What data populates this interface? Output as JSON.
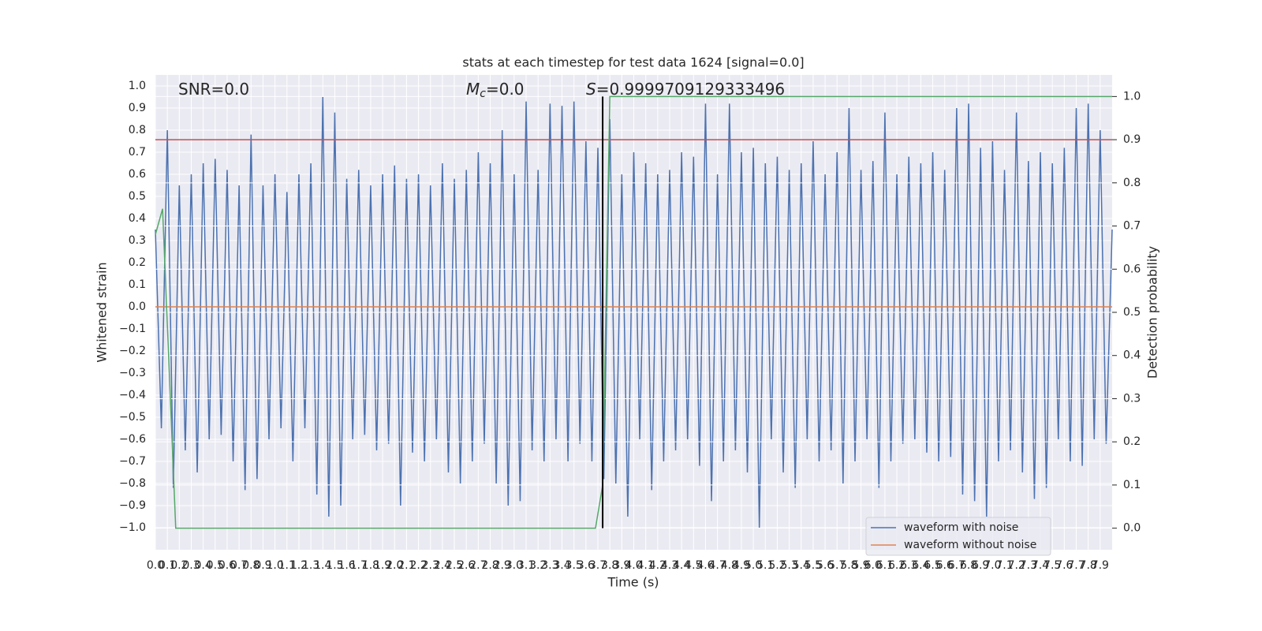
{
  "chart_data": {
    "type": "line",
    "title": "stats at each timestep for test data 1624 [signal=0.0]",
    "x_label": "Time (s)",
    "y_label": "Whitened strain",
    "y2_label": "Detection probability",
    "annotations": [
      {
        "text": "SNR=0.0"
      },
      {
        "symbol": "M",
        "subscript": "c",
        "text": "=0.0"
      },
      {
        "symbol": "S",
        "text": "=0.9999709129333496"
      }
    ],
    "xlim": [
      0,
      8
    ],
    "ylim": [
      -1.1,
      1.05
    ],
    "y2lim": [
      -0.05,
      1.05
    ],
    "grid": true,
    "legend": "lower right",
    "xticks": [
      {
        "value": 0,
        "label": "0.0"
      },
      0.1,
      0.2,
      0.3,
      0.4,
      0.5,
      0.6,
      0.7,
      0.8,
      0.9,
      {
        "value": 1,
        "label": "1.0"
      },
      1.1,
      1.2,
      1.3,
      1.4,
      1.5,
      1.6,
      1.7,
      1.8,
      1.9,
      {
        "value": 2,
        "label": "2.0"
      },
      2.1,
      2.2,
      2.3,
      2.4,
      2.5,
      2.6,
      2.7,
      2.8,
      2.9,
      {
        "value": 3,
        "label": "3.0"
      },
      3.1,
      3.2,
      3.3,
      3.4,
      3.5,
      3.6,
      3.7,
      3.8,
      3.9,
      {
        "value": 4,
        "label": "4.0"
      },
      4.1,
      4.2,
      4.3,
      4.4,
      4.5,
      4.6,
      4.7,
      4.8,
      4.9,
      {
        "value": 5,
        "label": "5.0"
      },
      5.1,
      5.2,
      5.3,
      5.4,
      5.5,
      5.6,
      5.7,
      5.8,
      5.9,
      {
        "value": 6,
        "label": "6.0"
      },
      6.1,
      6.2,
      6.3,
      6.4,
      6.5,
      6.6,
      6.7,
      6.8,
      6.9,
      {
        "value": 7,
        "label": "7.0"
      },
      7.1,
      7.2,
      7.3,
      7.4,
      7.5,
      7.6,
      7.7,
      7.8,
      7.9
    ],
    "yticks": [
      {
        "value": -1.0,
        "label": "−1.0"
      },
      {
        "value": -0.9,
        "label": "−0.9"
      },
      {
        "value": -0.8,
        "label": "−0.8"
      },
      {
        "value": -0.7,
        "label": "−0.7"
      },
      {
        "value": -0.6,
        "label": "−0.6"
      },
      {
        "value": -0.5,
        "label": "−0.5"
      },
      {
        "value": -0.4,
        "label": "−0.4"
      },
      {
        "value": -0.3,
        "label": "−0.3"
      },
      {
        "value": -0.2,
        "label": "−0.2"
      },
      {
        "value": -0.1,
        "label": "−0.1"
      },
      {
        "value": 0,
        "label": "0.0"
      },
      0.1,
      0.2,
      0.3,
      0.4,
      0.5,
      0.6,
      0.7,
      0.8,
      0.9,
      {
        "value": 1,
        "label": "1.0"
      }
    ],
    "y2ticks": [
      {
        "value": 0,
        "label": "0.0"
      },
      0.1,
      0.2,
      0.3,
      0.4,
      0.5,
      0.6,
      0.7,
      0.8,
      0.9,
      {
        "value": 1,
        "label": "1.0"
      }
    ],
    "x": [
      0,
      0.05,
      0.1,
      0.15,
      0.2,
      0.25,
      0.3,
      0.35,
      0.4,
      0.45,
      0.5,
      0.55,
      0.6,
      0.65,
      0.7,
      0.75,
      0.8,
      0.85,
      0.9,
      0.95,
      1,
      1.05,
      1.1,
      1.15,
      1.2,
      1.25,
      1.3,
      1.35,
      1.4,
      1.45,
      1.5,
      1.55,
      1.6,
      1.65,
      1.7,
      1.75,
      1.8,
      1.85,
      1.9,
      1.95,
      2,
      2.05,
      2.1,
      2.15,
      2.2,
      2.25,
      2.3,
      2.35,
      2.4,
      2.45,
      2.5,
      2.55,
      2.6,
      2.65,
      2.7,
      2.75,
      2.8,
      2.85,
      2.9,
      2.95,
      3,
      3.05,
      3.1,
      3.15,
      3.2,
      3.25,
      3.3,
      3.35,
      3.4,
      3.45,
      3.5,
      3.55,
      3.6,
      3.65,
      3.7,
      3.75,
      3.8,
      3.85,
      3.9,
      3.95,
      4,
      4.05,
      4.1,
      4.15,
      4.2,
      4.25,
      4.3,
      4.35,
      4.4,
      4.45,
      4.5,
      4.55,
      4.6,
      4.65,
      4.7,
      4.75,
      4.8,
      4.85,
      4.9,
      4.95,
      5,
      5.05,
      5.1,
      5.15,
      5.2,
      5.25,
      5.3,
      5.35,
      5.4,
      5.45,
      5.5,
      5.55,
      5.6,
      5.65,
      5.7,
      5.75,
      5.8,
      5.85,
      5.9,
      5.95,
      6,
      6.05,
      6.1,
      6.15,
      6.2,
      6.25,
      6.3,
      6.35,
      6.4,
      6.45,
      6.5,
      6.55,
      6.6,
      6.65,
      6.7,
      6.75,
      6.8,
      6.85,
      6.9,
      6.95,
      7,
      7.05,
      7.1,
      7.15,
      7.2,
      7.25,
      7.3,
      7.35,
      7.4,
      7.45,
      7.5,
      7.55,
      7.6,
      7.65,
      7.7,
      7.75,
      7.8,
      7.85,
      7.9,
      7.95,
      8
    ],
    "series": [
      {
        "name": "waveform with noise",
        "color": "#4c72b0",
        "values": [
          0.35,
          -0.55,
          0.8,
          -0.82,
          0.55,
          -0.65,
          0.6,
          -0.75,
          0.65,
          -0.6,
          0.67,
          -0.58,
          0.62,
          -0.7,
          0.55,
          -0.83,
          0.78,
          -0.78,
          0.55,
          -0.6,
          0.6,
          -0.55,
          0.52,
          -0.7,
          0.6,
          -0.55,
          0.65,
          -0.85,
          0.95,
          -0.95,
          0.88,
          -0.9,
          0.58,
          -0.6,
          0.62,
          -0.58,
          0.55,
          -0.65,
          0.6,
          -0.62,
          0.64,
          -0.9,
          0.58,
          -0.66,
          0.6,
          -0.7,
          0.55,
          -0.6,
          0.65,
          -0.75,
          0.58,
          -0.8,
          0.62,
          -0.7,
          0.7,
          -0.62,
          0.65,
          -0.8,
          0.8,
          -0.9,
          0.6,
          -0.88,
          0.93,
          -0.65,
          0.62,
          -0.7,
          0.92,
          -0.6,
          0.91,
          -0.7,
          0.93,
          -0.62,
          0.75,
          -0.7,
          0.72,
          -0.78,
          0.85,
          -0.8,
          0.6,
          -0.95,
          0.7,
          -0.6,
          0.65,
          -0.83,
          0.6,
          -0.7,
          0.62,
          -0.65,
          0.7,
          -0.6,
          0.68,
          -0.72,
          0.92,
          -0.88,
          0.6,
          -0.7,
          0.92,
          -0.65,
          0.7,
          -0.75,
          0.72,
          -1.0,
          0.65,
          -0.6,
          0.68,
          -0.75,
          0.62,
          -0.82,
          0.65,
          -0.6,
          0.75,
          -0.7,
          0.6,
          -0.65,
          0.7,
          -0.8,
          0.9,
          -0.7,
          0.62,
          -0.6,
          0.66,
          -0.82,
          0.88,
          -0.7,
          0.6,
          -0.62,
          0.68,
          -0.6,
          0.65,
          -0.66,
          0.7,
          -0.7,
          0.62,
          -0.68,
          0.9,
          -0.85,
          0.92,
          -0.88,
          0.72,
          -0.95,
          0.75,
          -0.7,
          0.62,
          -0.65,
          0.88,
          -0.75,
          0.66,
          -0.87,
          0.7,
          -0.82,
          0.65,
          -0.6,
          0.72,
          -0.7,
          0.9,
          -0.72,
          0.92,
          -0.6,
          0.8,
          -0.62,
          0.35
        ]
      },
      {
        "name": "waveform without noise",
        "color": "#dd8452",
        "values": [
          0,
          0,
          0,
          0,
          0,
          0,
          0,
          0,
          0,
          0,
          0,
          0,
          0,
          0,
          0,
          0,
          0,
          0,
          0,
          0,
          0,
          0,
          0,
          0,
          0,
          0,
          0,
          0,
          0,
          0,
          0,
          0,
          0,
          0,
          0,
          0,
          0,
          0,
          0,
          0,
          0,
          0,
          0,
          0,
          0,
          0,
          0,
          0,
          0,
          0,
          0,
          0,
          0,
          0,
          0,
          0,
          0,
          0,
          0,
          0,
          0,
          0,
          0,
          0,
          0,
          0,
          0,
          0,
          0,
          0,
          0,
          0,
          0,
          0,
          0,
          0,
          0,
          0,
          0,
          0,
          0,
          0,
          0,
          0,
          0,
          0,
          0,
          0,
          0,
          0,
          0,
          0,
          0,
          0,
          0,
          0,
          0,
          0,
          0,
          0,
          0,
          0,
          0,
          0,
          0,
          0,
          0,
          0,
          0,
          0,
          0,
          0,
          0,
          0,
          0,
          0,
          0,
          0,
          0,
          0,
          0,
          0,
          0,
          0,
          0,
          0,
          0,
          0,
          0,
          0,
          0,
          0,
          0,
          0,
          0,
          0,
          0,
          0,
          0,
          0,
          0,
          0,
          0,
          0,
          0,
          0,
          0,
          0,
          0,
          0,
          0,
          0,
          0,
          0,
          0,
          0,
          0,
          0,
          0,
          0,
          0
        ]
      },
      {
        "color": "#55a868",
        "axis": "y2",
        "x": [
          0,
          0.06,
          0.17,
          1.8,
          3.68,
          3.74,
          3.8,
          8
        ],
        "values": [
          0.68,
          0.74,
          0.0,
          0.0,
          0.0,
          0.1,
          1.0,
          1.0
        ]
      }
    ],
    "hline": {
      "value": 0.9,
      "axis": "y2",
      "color": "#c44e52"
    },
    "vline": {
      "value": 3.74,
      "y2range": [
        0,
        1
      ],
      "color": "#000000"
    }
  }
}
